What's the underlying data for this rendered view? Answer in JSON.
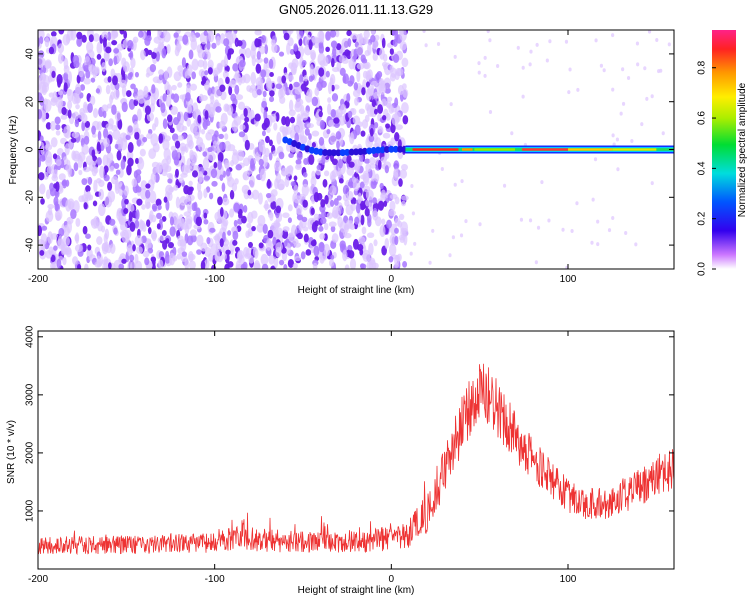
{
  "title": "GN05.2026.011.11.13.G29",
  "chart_data": [
    {
      "type": "heatmap",
      "name": "spectrogram",
      "xlabel": "Height of straight line (km)",
      "ylabel": "Frequency (Hz)",
      "xlim": [
        -200,
        160
      ],
      "ylim": [
        -50,
        50
      ],
      "xticks": [
        -200,
        -100,
        0,
        100
      ],
      "yticks": [
        -40,
        -20,
        0,
        20,
        40
      ],
      "colorbar": {
        "label": "Normalized spectral amplitude",
        "range": [
          0,
          0.95
        ],
        "ticks": [
          0.0,
          0.2,
          0.4,
          0.6,
          0.8
        ]
      },
      "features": {
        "noise_region_x": [
          -200,
          8
        ],
        "signal_line_x": [
          8,
          160
        ],
        "signal_frequency": 0,
        "peak_amplitude": 0.9
      }
    },
    {
      "type": "line",
      "name": "snr",
      "color": "#ee3333",
      "xlabel": "Height of straight line (km)",
      "ylabel": "SNR (10 * v/v)",
      "xlim": [
        -200,
        160
      ],
      "ylim": [
        0,
        4100
      ],
      "xticks": [
        -200,
        -100,
        0,
        100
      ],
      "yticks": [
        1000,
        2000,
        3000,
        4000
      ],
      "envelope": {
        "x": [
          -200,
          -150,
          -100,
          -90,
          -85,
          -80,
          -60,
          -20,
          0,
          10,
          20,
          30,
          40,
          50,
          55,
          60,
          70,
          80,
          90,
          100,
          110,
          120,
          130,
          140,
          150,
          160
        ],
        "mid": [
          400,
          420,
          450,
          520,
          650,
          520,
          470,
          480,
          530,
          620,
          950,
          1700,
          2500,
          3050,
          3000,
          2750,
          2300,
          1900,
          1550,
          1250,
          1100,
          1120,
          1250,
          1400,
          1550,
          1750
        ],
        "amp": [
          150,
          160,
          170,
          220,
          300,
          220,
          190,
          200,
          220,
          260,
          340,
          420,
          500,
          550,
          560,
          500,
          430,
          380,
          330,
          300,
          280,
          290,
          300,
          320,
          340,
          380
        ]
      }
    }
  ]
}
